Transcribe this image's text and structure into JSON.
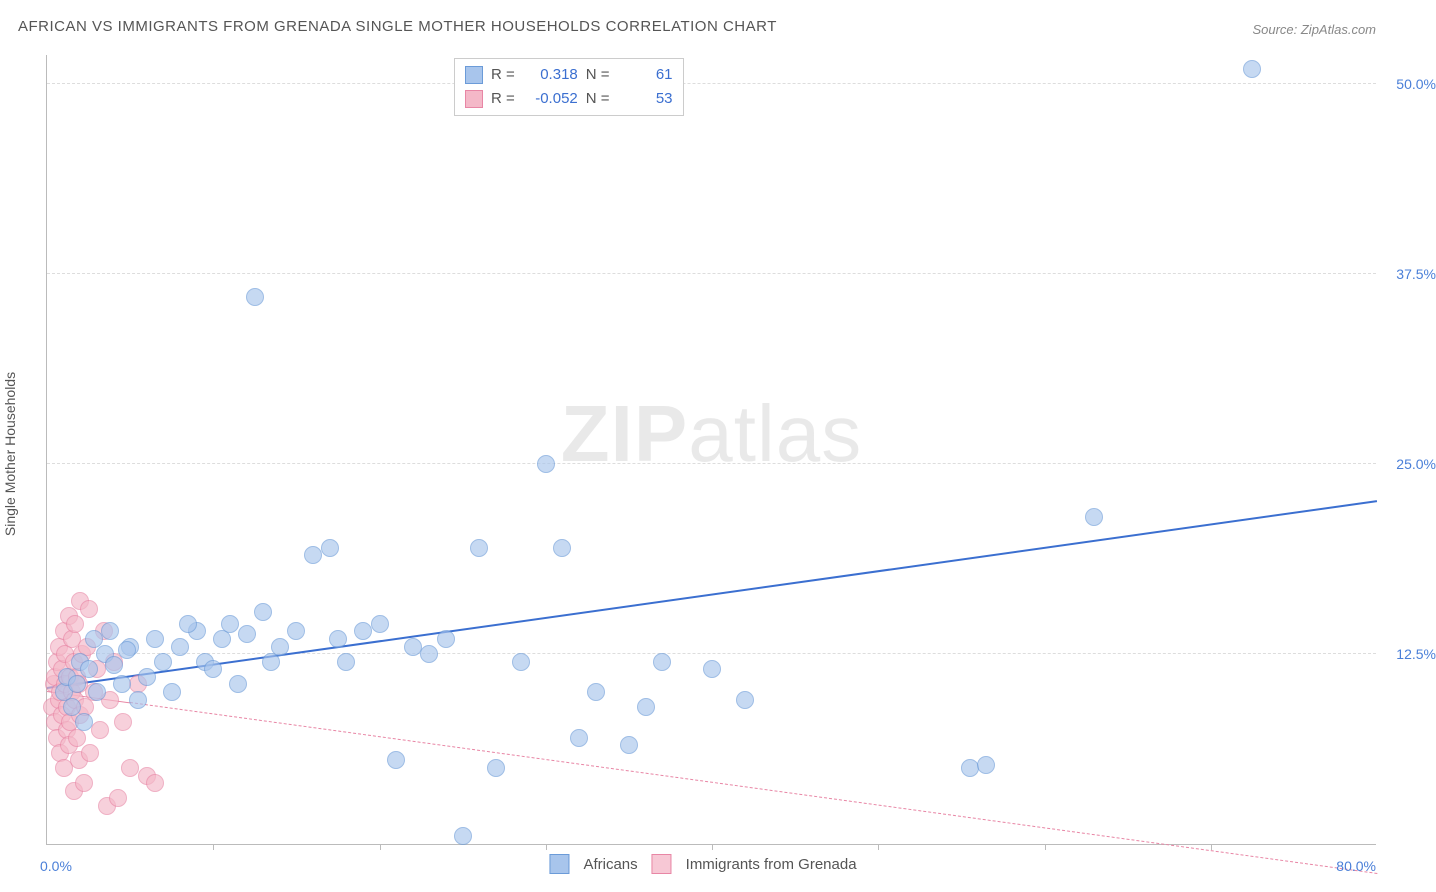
{
  "chart": {
    "type": "scatter",
    "title": "AFRICAN VS IMMIGRANTS FROM GRENADA SINGLE MOTHER HOUSEHOLDS CORRELATION CHART",
    "source": "Source: ZipAtlas.com",
    "watermark_zip": "ZIP",
    "watermark_atlas": "atlas",
    "y_axis_title": "Single Mother Households",
    "background_color": "#ffffff",
    "grid_color": "#dddddd",
    "axis_color": "#bbbbbb",
    "title_fontsize": 15,
    "label_fontsize": 14,
    "xlim": [
      0,
      80
    ],
    "ylim": [
      0,
      52
    ],
    "x_origin_label": "0.0%",
    "x_max_label": "80.0%",
    "x_ticks": [
      10,
      20,
      30,
      40,
      50,
      60,
      70
    ],
    "y_ticks": [
      {
        "value": 12.5,
        "label": "12.5%"
      },
      {
        "value": 25.0,
        "label": "25.0%"
      },
      {
        "value": 37.5,
        "label": "37.5%"
      },
      {
        "value": 50.0,
        "label": "50.0%"
      }
    ],
    "series": [
      {
        "name": "Africans",
        "marker_color": "#a8c5ec",
        "marker_border": "#6b9bd8",
        "marker_opacity": 0.65,
        "marker_radius": 9,
        "trend": {
          "x1": 0,
          "y1": 10.2,
          "x2": 80,
          "y2": 22.5,
          "color": "#3b6fd0",
          "width": 2.5,
          "dash": false,
          "solid_until_x": 80
        },
        "R": "0.318",
        "N": "61",
        "points": [
          [
            1.0,
            10.0
          ],
          [
            1.2,
            11.0
          ],
          [
            1.5,
            9.0
          ],
          [
            1.8,
            10.5
          ],
          [
            2.0,
            12.0
          ],
          [
            2.2,
            8.0
          ],
          [
            2.5,
            11.5
          ],
          [
            3.0,
            10.0
          ],
          [
            3.5,
            12.5
          ],
          [
            4.0,
            11.8
          ],
          [
            4.5,
            10.5
          ],
          [
            5.0,
            13.0
          ],
          [
            5.5,
            9.5
          ],
          [
            6.0,
            11.0
          ],
          [
            6.5,
            13.5
          ],
          [
            7.0,
            12.0
          ],
          [
            7.5,
            10.0
          ],
          [
            8.0,
            13.0
          ],
          [
            9.0,
            14.0
          ],
          [
            9.5,
            12.0
          ],
          [
            10.0,
            11.5
          ],
          [
            10.5,
            13.5
          ],
          [
            11.0,
            14.5
          ],
          [
            12.0,
            13.8
          ],
          [
            13.0,
            15.3
          ],
          [
            13.5,
            12.0
          ],
          [
            14.0,
            13.0
          ],
          [
            15.0,
            14.0
          ],
          [
            16.0,
            19.0
          ],
          [
            17.0,
            19.5
          ],
          [
            17.5,
            13.5
          ],
          [
            18.0,
            12.0
          ],
          [
            19.0,
            14.0
          ],
          [
            20.0,
            14.5
          ],
          [
            21.0,
            5.5
          ],
          [
            22.0,
            13.0
          ],
          [
            23.0,
            12.5
          ],
          [
            24.0,
            13.5
          ],
          [
            25.0,
            0.5
          ],
          [
            26.0,
            19.5
          ],
          [
            27.0,
            5.0
          ],
          [
            28.5,
            12.0
          ],
          [
            30.0,
            25.0
          ],
          [
            31.0,
            19.5
          ],
          [
            32.0,
            7.0
          ],
          [
            33.0,
            10.0
          ],
          [
            35.0,
            6.5
          ],
          [
            36.0,
            9.0
          ],
          [
            37.0,
            12.0
          ],
          [
            40.0,
            11.5
          ],
          [
            42.0,
            9.5
          ],
          [
            55.5,
            5.0
          ],
          [
            56.5,
            5.2
          ],
          [
            63.0,
            21.5
          ],
          [
            72.5,
            51.0
          ],
          [
            12.5,
            36.0
          ],
          [
            2.8,
            13.5
          ],
          [
            3.8,
            14.0
          ],
          [
            4.8,
            12.8
          ],
          [
            8.5,
            14.5
          ],
          [
            11.5,
            10.5
          ]
        ]
      },
      {
        "name": "Immigrants from Grenada",
        "marker_color": "#f4b8c8",
        "marker_border": "#e886a5",
        "marker_opacity": 0.65,
        "marker_radius": 9,
        "trend": {
          "x1": 0,
          "y1": 10.0,
          "x2": 80,
          "y2": -2.0,
          "color": "#e886a5",
          "width": 1.5,
          "dash": true,
          "solid_until_x": 5
        },
        "R": "-0.052",
        "N": "53",
        "points": [
          [
            0.3,
            9.0
          ],
          [
            0.4,
            10.5
          ],
          [
            0.5,
            8.0
          ],
          [
            0.5,
            11.0
          ],
          [
            0.6,
            7.0
          ],
          [
            0.6,
            12.0
          ],
          [
            0.7,
            9.5
          ],
          [
            0.7,
            13.0
          ],
          [
            0.8,
            6.0
          ],
          [
            0.8,
            10.0
          ],
          [
            0.9,
            11.5
          ],
          [
            0.9,
            8.5
          ],
          [
            1.0,
            14.0
          ],
          [
            1.0,
            5.0
          ],
          [
            1.1,
            10.5
          ],
          [
            1.1,
            12.5
          ],
          [
            1.2,
            7.5
          ],
          [
            1.2,
            9.0
          ],
          [
            1.3,
            15.0
          ],
          [
            1.3,
            6.5
          ],
          [
            1.4,
            11.0
          ],
          [
            1.4,
            8.0
          ],
          [
            1.5,
            13.5
          ],
          [
            1.5,
            10.0
          ],
          [
            1.6,
            3.5
          ],
          [
            1.6,
            12.0
          ],
          [
            1.7,
            9.5
          ],
          [
            1.7,
            14.5
          ],
          [
            1.8,
            7.0
          ],
          [
            1.8,
            11.0
          ],
          [
            1.9,
            5.5
          ],
          [
            1.9,
            10.5
          ],
          [
            2.0,
            16.0
          ],
          [
            2.0,
            8.5
          ],
          [
            2.1,
            12.5
          ],
          [
            2.2,
            4.0
          ],
          [
            2.3,
            9.0
          ],
          [
            2.4,
            13.0
          ],
          [
            2.5,
            15.5
          ],
          [
            2.6,
            6.0
          ],
          [
            2.8,
            10.0
          ],
          [
            3.0,
            11.5
          ],
          [
            3.2,
            7.5
          ],
          [
            3.4,
            14.0
          ],
          [
            3.6,
            2.5
          ],
          [
            3.8,
            9.5
          ],
          [
            4.0,
            12.0
          ],
          [
            4.3,
            3.0
          ],
          [
            4.6,
            8.0
          ],
          [
            5.0,
            5.0
          ],
          [
            5.5,
            10.5
          ],
          [
            6.0,
            4.5
          ],
          [
            6.5,
            4.0
          ]
        ]
      }
    ],
    "bottom_legend": [
      {
        "swatch_fill": "#a8c5ec",
        "swatch_border": "#6b9bd8",
        "label": "Africans"
      },
      {
        "swatch_fill": "#f7c8d5",
        "swatch_border": "#e886a5",
        "label": "Immigrants from Grenada"
      }
    ],
    "corr_legend": {
      "r_label": "R =",
      "n_label": "N ="
    }
  }
}
